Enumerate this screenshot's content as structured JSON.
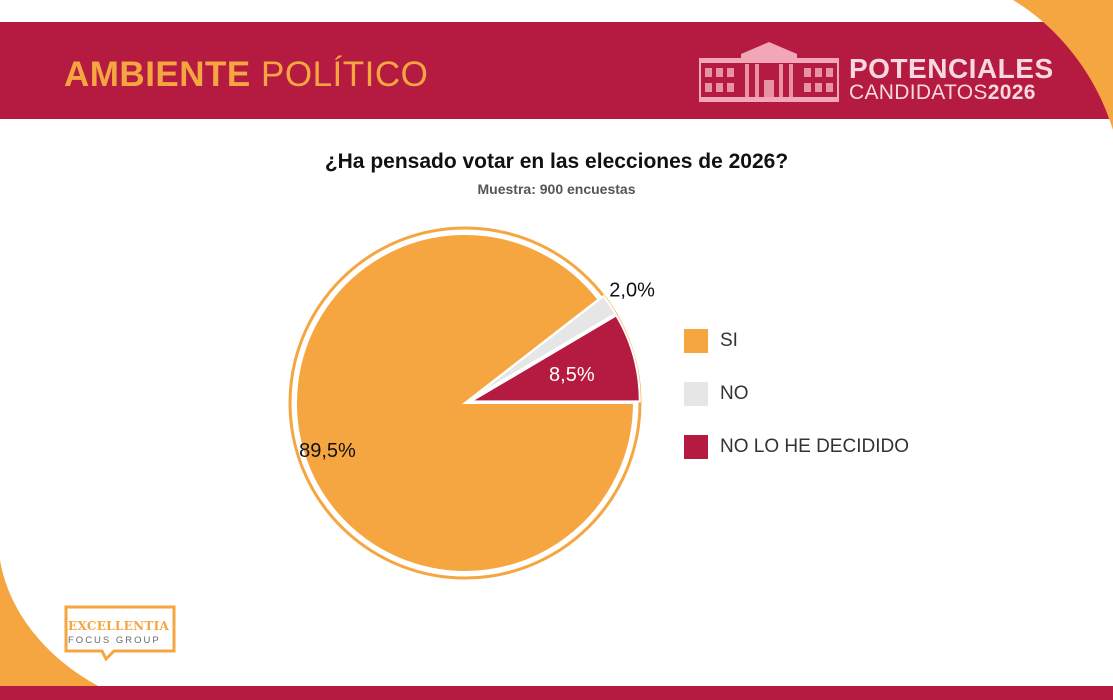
{
  "header": {
    "title_bold": "AMBIENTE",
    "title_light": "POLÍTICO",
    "brand_line1": "POTENCIALES",
    "brand_line2": "CANDIDATOS",
    "brand_year": "2026"
  },
  "chart_data": {
    "type": "pie",
    "title": "¿Ha pensado votar en las elecciones de 2026?",
    "subtitle": "Muestra: 900 encuestas",
    "categories": [
      "SI",
      "NO",
      "NO LO HE DECIDIDO"
    ],
    "values": [
      89.5,
      2.0,
      8.5
    ],
    "labels": [
      "89,5%",
      "2,0%",
      "8,5%"
    ],
    "colors": [
      "#f5a640",
      "#e6e6e6",
      "#b51a40"
    ],
    "exploded": [
      "NO",
      "NO LO HE DECIDIDO"
    ],
    "legend_position": "right"
  },
  "logo": {
    "name": "EXCELLENTIA",
    "tagline": "FOCUS GROUP"
  },
  "colors": {
    "brand_crimson": "#b51a40",
    "brand_orange": "#f5a640"
  }
}
